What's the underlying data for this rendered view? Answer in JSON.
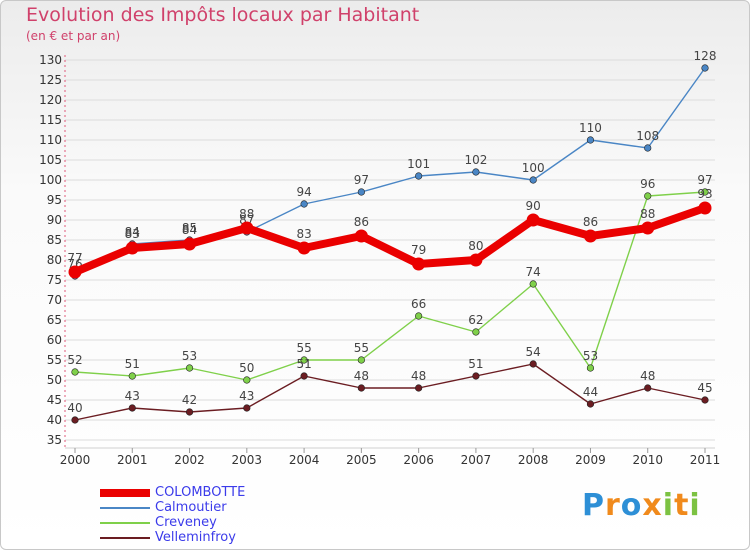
{
  "header": {
    "title": "Evolution des Impôts locaux par Habitant",
    "subtitle": "(en € et par an)"
  },
  "chart_data": {
    "type": "line",
    "title": "Evolution des Impôts locaux par Habitant",
    "subtitle": "(en € et par an)",
    "xlabel": "",
    "ylabel": "",
    "ylim": [
      35,
      130
    ],
    "y_ticks": [
      35,
      40,
      45,
      50,
      55,
      60,
      65,
      70,
      75,
      80,
      85,
      90,
      95,
      100,
      105,
      110,
      115,
      120,
      125,
      130
    ],
    "x": [
      "2000",
      "2001",
      "2002",
      "2003",
      "2004",
      "2005",
      "2006",
      "2007",
      "2008",
      "2009",
      "2010",
      "2011"
    ],
    "grid": true,
    "legend_position": "bottom-left",
    "series": [
      {
        "name": "Calmoutier",
        "color": "#4a86c5",
        "values": [
          76,
          84,
          85,
          87,
          94,
          97,
          101,
          102,
          100,
          110,
          108,
          128
        ]
      },
      {
        "name": "Creveney",
        "color": "#7fd04a",
        "values": [
          52,
          51,
          53,
          50,
          55,
          55,
          66,
          62,
          74,
          53,
          96,
          97
        ]
      },
      {
        "name": "Velleminfroy",
        "color": "#6b1d22",
        "values": [
          40,
          43,
          42,
          43,
          51,
          48,
          48,
          51,
          54,
          44,
          48,
          45
        ]
      },
      {
        "name": "COLOMBOTTE",
        "color": "#ea0000",
        "values": [
          77,
          83,
          84,
          88,
          83,
          86,
          79,
          80,
          90,
          86,
          88,
          93
        ]
      }
    ],
    "legend_order": [
      "COLOMBOTTE",
      "Calmoutier",
      "Creveney",
      "Velleminfroy"
    ],
    "legend_label_colors": {
      "COLOMBOTTE": "#3b3bea",
      "Calmoutier": "#3b3bea",
      "Creveney": "#3b3bea",
      "Velleminfroy": "#3b3bea"
    }
  },
  "brand": {
    "logo_letters": [
      "P",
      "r",
      "o",
      "x",
      "i",
      "t",
      "i"
    ],
    "logo_colors": [
      "#2d8fd6",
      "#f08a1c",
      "#2d8fd6",
      "#f08a1c",
      "#7cc242",
      "#f08a1c",
      "#7cc242"
    ]
  }
}
